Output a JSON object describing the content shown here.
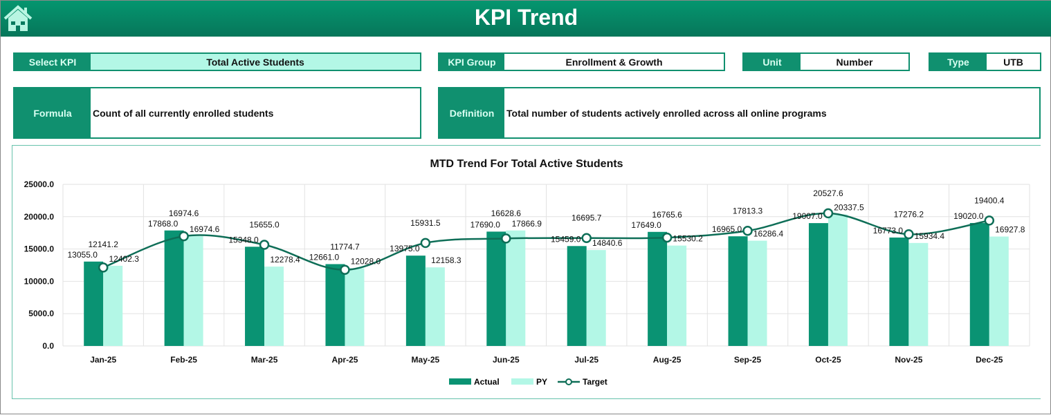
{
  "header": {
    "title": "KPI Trend",
    "home_icon": "home-icon"
  },
  "controls": {
    "select_kpi": {
      "label": "Select KPI",
      "value": "Total Active Students"
    },
    "kpi_group": {
      "label": "KPI Group",
      "value": "Enrollment & Growth"
    },
    "unit": {
      "label": "Unit",
      "value": "Number"
    },
    "type": {
      "label": "Type",
      "value": "UTB"
    },
    "formula": {
      "label": "Formula",
      "value": "Count of all currently enrolled students"
    },
    "definition": {
      "label": "Definition",
      "value": "Total number of students actively enrolled across all online programs"
    }
  },
  "colors": {
    "actual": "#0a9373",
    "py": "#b3f7e6",
    "target": "#0e6e57",
    "header": "#05936f"
  },
  "chart_data": {
    "type": "bar",
    "title": "MTD Trend For Total Active Students",
    "categories": [
      "Jan-25",
      "Feb-25",
      "Mar-25",
      "Apr-25",
      "May-25",
      "Jun-25",
      "Jul-25",
      "Aug-25",
      "Sep-25",
      "Oct-25",
      "Nov-25",
      "Dec-25"
    ],
    "series": [
      {
        "name": "Actual",
        "type": "bar",
        "values": [
          13055.0,
          17868.0,
          15348.0,
          12661.0,
          13975.0,
          17690.0,
          15459.0,
          17649.0,
          16965.0,
          19007.0,
          16773.0,
          19020.0
        ]
      },
      {
        "name": "PY",
        "type": "bar",
        "values": [
          12402.3,
          16974.6,
          12278.4,
          12028.0,
          12158.3,
          17866.9,
          14840.6,
          15530.2,
          16286.4,
          20337.5,
          15934.4,
          16927.8
        ]
      },
      {
        "name": "Target",
        "type": "line",
        "values": [
          12141.2,
          16974.6,
          15655.0,
          11774.7,
          15931.5,
          16628.6,
          16695.7,
          16765.6,
          17813.3,
          20527.6,
          17276.2,
          19400.4
        ]
      }
    ],
    "yticks": [
      "0.0",
      "5000.0",
      "10000.0",
      "15000.0",
      "20000.0",
      "25000.0"
    ],
    "ylim": [
      0,
      25000
    ],
    "grid": true,
    "legend": "bottom"
  }
}
